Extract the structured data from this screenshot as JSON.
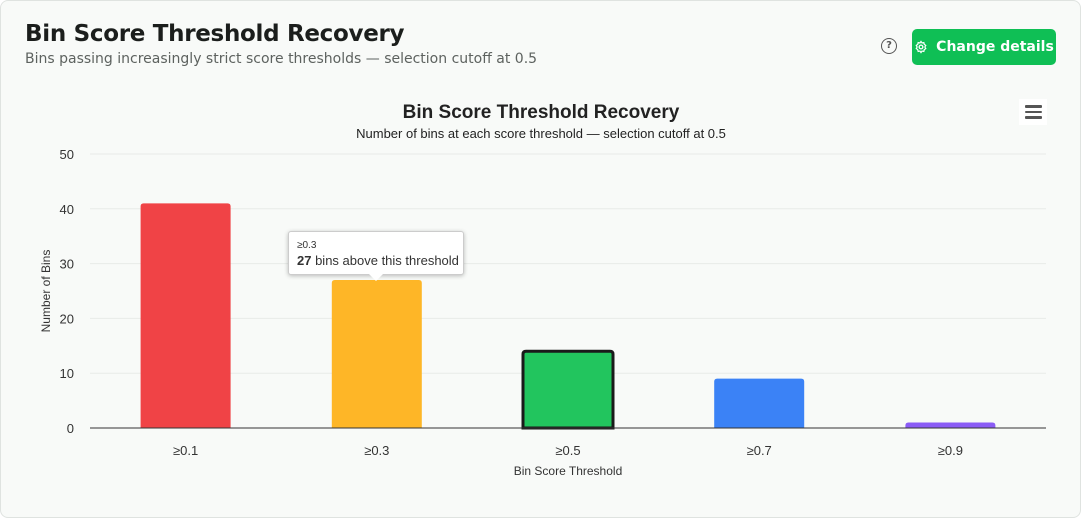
{
  "header": {
    "title": "Bin Score Threshold Recovery",
    "subtitle": "Bins passing increasingly strict score thresholds — selection cutoff at 0.5",
    "help_icon": "question-circle-icon",
    "button_label": "Change details",
    "button_icon": "gear-icon",
    "accent": "#0fbf55"
  },
  "chart_data": {
    "type": "bar",
    "title": "Bin Score Threshold Recovery",
    "subtitle": "Number of bins at each score threshold — selection cutoff at 0.5",
    "xlabel": "Bin Score Threshold",
    "ylabel": "Number of Bins",
    "categories": [
      "≥0.1",
      "≥0.3",
      "≥0.5",
      "≥0.7",
      "≥0.9"
    ],
    "values": [
      41,
      27,
      14,
      9,
      1
    ],
    "colors": [
      "#f04346",
      "#feb627",
      "#22c55e",
      "#3b82f6",
      "#8b5cf6"
    ],
    "highlighted": "≥0.5",
    "ylim": [
      0,
      50
    ],
    "yticks": [
      0,
      10,
      20,
      30,
      40,
      50
    ],
    "grid": true,
    "tooltip": {
      "category": "≥0.3",
      "value": "27",
      "text": " bins above this threshold"
    }
  }
}
